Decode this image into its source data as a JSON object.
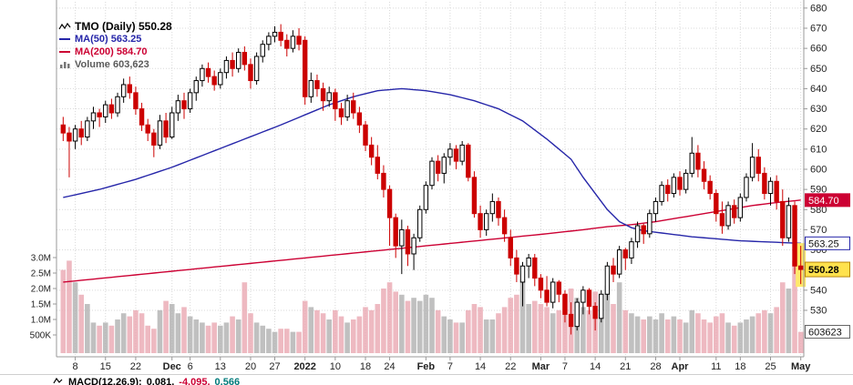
{
  "legend": {
    "title": "TMO (Daily) 550.28",
    "ma50": "MA(50) 563.25",
    "ma200": "MA(200) 584.70",
    "volume": "Volume 603,623"
  },
  "footer": {
    "label": "MACD(12,26,9):",
    "v1": "0.081,",
    "v2": "-4.095,",
    "v3": "0.566"
  },
  "colors": {
    "up_candle_fill": "#ffffff",
    "up_candle_stroke": "#000000",
    "down_candle": "#cc0000",
    "ma50_line": "#2626a9",
    "ma200_line": "#cc0033",
    "volume_up": "#b0b0b0",
    "volume_down": "#eaa7b2",
    "grid": "#d9d9d9",
    "axis": "#999999",
    "label_text": "#222222",
    "highlight": "#ffe96b"
  },
  "chart_data": {
    "type": "candlestick",
    "symbol": "TMO",
    "timeframe": "Daily",
    "title": "TMO (Daily)",
    "last_close": 550.28,
    "ma50_last": 563.25,
    "ma200_last": 584.7,
    "volume_last": 603623,
    "price_axis": {
      "side": "right",
      "ticks": [
        680,
        670,
        660,
        650,
        640,
        630,
        620,
        610,
        600,
        590,
        580,
        570,
        560,
        550,
        540,
        530
      ]
    },
    "volume_axis": {
      "side": "left",
      "ticks": [
        {
          "label": "3.0M",
          "value": 3.0
        },
        {
          "label": "2.5M",
          "value": 2.5
        },
        {
          "label": "2.0M",
          "value": 2.0
        },
        {
          "label": "1.5M",
          "value": 1.5
        },
        {
          "label": "1.0M",
          "value": 1.0
        },
        {
          "label": "500K",
          "value": 0.5
        }
      ]
    },
    "x_axis": {
      "ticks": [
        {
          "i": 2,
          "label": "8"
        },
        {
          "i": 7,
          "label": "15"
        },
        {
          "i": 12,
          "label": "22"
        },
        {
          "i": 18,
          "label": "Dec",
          "bold": true
        },
        {
          "i": 21,
          "label": "6"
        },
        {
          "i": 26,
          "label": "13"
        },
        {
          "i": 31,
          "label": "20"
        },
        {
          "i": 35,
          "label": "27"
        },
        {
          "i": 40,
          "label": "2022",
          "bold": true
        },
        {
          "i": 45,
          "label": "10"
        },
        {
          "i": 50,
          "label": "18"
        },
        {
          "i": 54,
          "label": "24"
        },
        {
          "i": 60,
          "label": "Feb",
          "bold": true
        },
        {
          "i": 64,
          "label": "7"
        },
        {
          "i": 69,
          "label": "14"
        },
        {
          "i": 74,
          "label": "22"
        },
        {
          "i": 79,
          "label": "Mar",
          "bold": true
        },
        {
          "i": 83,
          "label": "7"
        },
        {
          "i": 88,
          "label": "14"
        },
        {
          "i": 93,
          "label": "21"
        },
        {
          "i": 98,
          "label": "28"
        },
        {
          "i": 102,
          "label": "Apr",
          "bold": true
        },
        {
          "i": 108,
          "label": "11"
        },
        {
          "i": 112,
          "label": "18"
        },
        {
          "i": 117,
          "label": "25"
        },
        {
          "i": 122,
          "label": "May",
          "bold": true
        }
      ]
    },
    "candles": {
      "columns": [
        "open",
        "high",
        "low",
        "close",
        "volume_millions"
      ],
      "rows": [
        [
          622,
          626,
          614,
          618,
          2.6
        ],
        [
          618,
          621,
          596,
          614,
          2.9
        ],
        [
          614,
          622,
          610,
          620,
          2.2
        ],
        [
          620,
          624,
          612,
          616,
          1.8
        ],
        [
          616,
          626,
          614,
          624,
          1.5
        ],
        [
          624,
          631,
          620,
          628,
          0.9
        ],
        [
          628,
          630,
          621,
          626,
          0.8
        ],
        [
          626,
          634,
          623,
          632,
          0.9
        ],
        [
          632,
          635,
          625,
          628,
          0.8
        ],
        [
          628,
          638,
          626,
          636,
          1.0
        ],
        [
          636,
          645,
          633,
          642,
          1.2
        ],
        [
          642,
          646,
          635,
          638,
          1.1
        ],
        [
          638,
          641,
          627,
          630,
          1.3
        ],
        [
          630,
          633,
          619,
          622,
          1.2
        ],
        [
          622,
          625,
          614,
          618,
          0.8
        ],
        [
          618,
          620,
          606,
          612,
          0.7
        ],
        [
          612,
          627,
          610,
          624,
          1.3
        ],
        [
          624,
          628,
          613,
          616,
          1.6
        ],
        [
          616,
          631,
          615,
          628,
          1.5
        ],
        [
          628,
          637,
          624,
          634,
          1.2
        ],
        [
          634,
          638,
          625,
          630,
          1.4
        ],
        [
          630,
          640,
          628,
          638,
          1.1
        ],
        [
          638,
          646,
          634,
          644,
          1.0
        ],
        [
          644,
          652,
          641,
          650,
          0.9
        ],
        [
          650,
          653,
          643,
          646,
          0.8
        ],
        [
          646,
          649,
          639,
          642,
          0.9
        ],
        [
          642,
          650,
          640,
          648,
          0.8
        ],
        [
          648,
          656,
          645,
          654,
          0.9
        ],
        [
          654,
          658,
          646,
          650,
          1.1
        ],
        [
          650,
          660,
          648,
          658,
          1.0
        ],
        [
          658,
          661,
          649,
          652,
          2.2
        ],
        [
          652,
          655,
          640,
          644,
          1.2
        ],
        [
          644,
          658,
          642,
          656,
          0.9
        ],
        [
          656,
          664,
          653,
          662,
          0.8
        ],
        [
          662,
          668,
          659,
          666,
          0.7
        ],
        [
          666,
          671,
          663,
          668,
          0.6
        ],
        [
          668,
          672,
          661,
          664,
          0.7
        ],
        [
          664,
          667,
          656,
          660,
          0.7
        ],
        [
          660,
          669,
          658,
          666,
          0.6
        ],
        [
          666,
          670,
          659,
          662,
          0.6
        ],
        [
          664,
          666,
          632,
          636,
          1.6
        ],
        [
          636,
          648,
          633,
          644,
          1.4
        ],
        [
          644,
          647,
          636,
          640,
          1.3
        ],
        [
          640,
          643,
          629,
          634,
          1.2
        ],
        [
          634,
          641,
          631,
          638,
          1.0
        ],
        [
          638,
          640,
          624,
          630,
          1.3
        ],
        [
          630,
          633,
          622,
          626,
          1.1
        ],
        [
          626,
          637,
          624,
          634,
          0.9
        ],
        [
          634,
          638,
          625,
          628,
          1.0
        ],
        [
          628,
          631,
          618,
          622,
          1.1
        ],
        [
          622,
          624,
          609,
          612,
          1.4
        ],
        [
          612,
          616,
          602,
          606,
          1.3
        ],
        [
          606,
          612,
          595,
          598,
          1.5
        ],
        [
          598,
          602,
          586,
          590,
          2.0
        ],
        [
          590,
          592,
          562,
          576,
          2.2
        ],
        [
          576,
          578,
          556,
          562,
          1.9
        ],
        [
          562,
          575,
          548,
          570,
          1.8
        ],
        [
          570,
          572,
          552,
          558,
          1.6
        ],
        [
          558,
          568,
          550,
          566,
          1.7
        ],
        [
          566,
          582,
          564,
          580,
          1.6
        ],
        [
          580,
          594,
          578,
          592,
          1.8
        ],
        [
          592,
          606,
          590,
          604,
          1.7
        ],
        [
          604,
          607,
          594,
          598,
          1.3
        ],
        [
          598,
          608,
          593,
          606,
          1.1
        ],
        [
          606,
          613,
          602,
          610,
          1.0
        ],
        [
          610,
          612,
          600,
          604,
          0.9
        ],
        [
          604,
          614,
          602,
          612,
          0.9
        ],
        [
          612,
          613,
          594,
          596,
          1.3
        ],
        [
          596,
          599,
          576,
          578,
          1.5
        ],
        [
          578,
          582,
          566,
          570,
          1.4
        ],
        [
          570,
          580,
          567,
          578,
          1.0
        ],
        [
          578,
          588,
          574,
          584,
          1.0
        ],
        [
          584,
          586,
          572,
          576,
          1.2
        ],
        [
          576,
          580,
          564,
          568,
          1.4
        ],
        [
          566,
          570,
          552,
          556,
          1.7
        ],
        [
          556,
          560,
          544,
          548,
          1.8
        ],
        [
          544,
          554,
          532,
          552,
          2.3
        ],
        [
          552,
          558,
          546,
          556,
          1.5
        ],
        [
          556,
          558,
          542,
          546,
          1.6
        ],
        [
          546,
          548,
          536,
          540,
          1.5
        ],
        [
          540,
          547,
          532,
          534,
          1.4
        ],
        [
          534,
          546,
          531,
          544,
          1.2
        ],
        [
          544,
          545,
          534,
          538,
          1.3
        ],
        [
          538,
          540,
          524,
          528,
          1.8
        ],
        [
          528,
          534,
          518,
          522,
          2.0
        ],
        [
          522,
          536,
          520,
          534,
          1.7
        ],
        [
          534,
          542,
          528,
          540,
          1.4
        ],
        [
          540,
          541,
          528,
          532,
          1.3
        ],
        [
          532,
          534,
          520,
          526,
          1.9
        ],
        [
          526,
          540,
          524,
          538,
          1.8
        ],
        [
          538,
          554,
          535,
          552,
          2.1
        ],
        [
          552,
          556,
          544,
          548,
          1.5
        ],
        [
          548,
          562,
          546,
          560,
          2.2
        ],
        [
          560,
          561,
          550,
          556,
          1.3
        ],
        [
          556,
          566,
          553,
          564,
          1.2
        ],
        [
          564,
          574,
          561,
          572,
          1.1
        ],
        [
          572,
          573,
          563,
          568,
          1.0
        ],
        [
          568,
          580,
          566,
          578,
          1.1
        ],
        [
          578,
          586,
          574,
          584,
          1.0
        ],
        [
          584,
          594,
          582,
          592,
          1.2
        ],
        [
          592,
          595,
          584,
          588,
          1.0
        ],
        [
          588,
          598,
          586,
          596,
          1.1
        ],
        [
          596,
          599,
          587,
          590,
          1.0
        ],
        [
          590,
          600,
          588,
          598,
          0.9
        ],
        [
          598,
          616,
          596,
          608,
          1.3
        ],
        [
          608,
          612,
          596,
          600,
          1.2
        ],
        [
          600,
          604,
          590,
          594,
          1.0
        ],
        [
          594,
          597,
          585,
          588,
          0.9
        ],
        [
          588,
          590,
          574,
          578,
          1.1
        ],
        [
          578,
          584,
          568,
          572,
          1.2
        ],
        [
          572,
          584,
          570,
          582,
          0.9
        ],
        [
          582,
          585,
          573,
          576,
          0.8
        ],
        [
          576,
          588,
          574,
          586,
          0.9
        ],
        [
          586,
          598,
          584,
          596,
          1.0
        ],
        [
          596,
          613,
          594,
          606,
          1.1
        ],
        [
          606,
          610,
          594,
          598,
          1.2
        ],
        [
          598,
          601,
          585,
          588,
          1.3
        ],
        [
          588,
          596,
          582,
          594,
          1.2
        ],
        [
          594,
          597,
          580,
          584,
          1.4
        ],
        [
          584,
          590,
          562,
          566,
          2.2
        ],
        [
          566,
          586,
          564,
          582,
          2.0
        ],
        [
          582,
          584,
          548,
          552,
          2.9
        ],
        [
          552,
          562,
          543,
          550.28,
          0.6
        ]
      ]
    },
    "ma50_points": [
      [
        0,
        586
      ],
      [
        6,
        590
      ],
      [
        12,
        595
      ],
      [
        18,
        601
      ],
      [
        24,
        608
      ],
      [
        30,
        615
      ],
      [
        36,
        622
      ],
      [
        40,
        627
      ],
      [
        44,
        632
      ],
      [
        48,
        636
      ],
      [
        52,
        639
      ],
      [
        56,
        640
      ],
      [
        60,
        639
      ],
      [
        64,
        637
      ],
      [
        68,
        634
      ],
      [
        72,
        630
      ],
      [
        76,
        624
      ],
      [
        80,
        615
      ],
      [
        84,
        605
      ],
      [
        86,
        596
      ],
      [
        88,
        588
      ],
      [
        90,
        580
      ],
      [
        92,
        574
      ],
      [
        94,
        571
      ],
      [
        96,
        569.5
      ],
      [
        100,
        568
      ],
      [
        104,
        566.5
      ],
      [
        108,
        565.5
      ],
      [
        112,
        564.5
      ],
      [
        116,
        564
      ],
      [
        122,
        563.25
      ]
    ],
    "ma200_points": [
      [
        0,
        544
      ],
      [
        10,
        547
      ],
      [
        20,
        550
      ],
      [
        30,
        553
      ],
      [
        40,
        556
      ],
      [
        50,
        559
      ],
      [
        60,
        562
      ],
      [
        70,
        565
      ],
      [
        80,
        568
      ],
      [
        86,
        570
      ],
      [
        90,
        571.5
      ],
      [
        94,
        572.5
      ],
      [
        98,
        574
      ],
      [
        102,
        576
      ],
      [
        106,
        578
      ],
      [
        110,
        580
      ],
      [
        114,
        582
      ],
      [
        118,
        583.5
      ],
      [
        122,
        584.7
      ]
    ],
    "right_badges": [
      {
        "label": "584.70",
        "price": 584.7,
        "bg": "#cc0033",
        "fg": "#ffffff",
        "border": "#cc0033",
        "bold": false
      },
      {
        "label": "563.25",
        "price": 563.25,
        "bg": "#ffffff",
        "fg": "#111111",
        "border": "#2626a9",
        "bold": false
      },
      {
        "label": "550.28",
        "price": 550.28,
        "bg": "#ffe24d",
        "fg": "#000000",
        "border": "#b8860b",
        "bold": true
      },
      {
        "label": "603623",
        "volume": 0.603,
        "bg": "#ffffff",
        "fg": "#111111",
        "border": "#666666",
        "bold": false
      }
    ],
    "highlight_last_candle": true,
    "grid": true,
    "legend_position": "top-left"
  }
}
